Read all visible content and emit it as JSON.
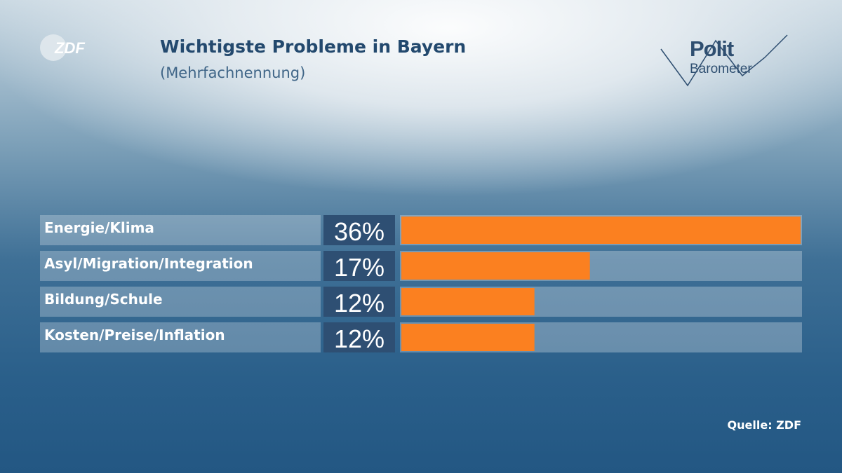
{
  "header": {
    "title": "Wichtigste Probleme in Bayern",
    "subtitle": "(Mehrfachnennung)",
    "source": "Quelle: ZDF"
  },
  "logos": {
    "broadcaster": "ZDF",
    "program_line1": "Polit",
    "program_line2": "Barometer",
    "program_icon": "zigzag-chart-icon"
  },
  "colors": {
    "bar_fill": "#fb8020",
    "value_box": "#2e4f73",
    "title_text": "#23496e"
  },
  "chart_data": {
    "type": "bar",
    "orientation": "horizontal",
    "title": "Wichtigste Probleme in Bayern",
    "subtitle": "(Mehrfachnennung)",
    "categories": [
      "Energie/Klima",
      "Asyl/Migration/Integration",
      "Bildung/Schule",
      "Kosten/Preise/Inflation"
    ],
    "values": [
      36,
      17,
      12,
      12
    ],
    "value_labels": [
      "36%",
      "17%",
      "12%",
      "12%"
    ],
    "unit": "%",
    "xlim": [
      0,
      36
    ],
    "grid": false,
    "legend": false
  }
}
